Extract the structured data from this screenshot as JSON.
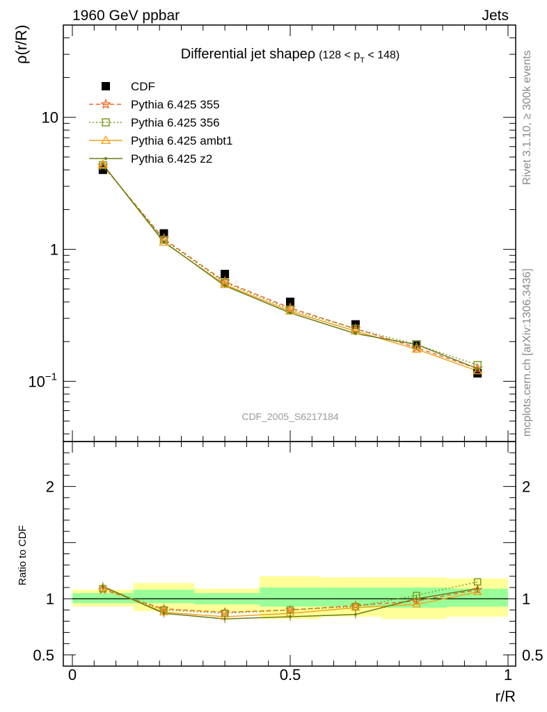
{
  "header": {
    "left": "1960 GeV ppbar",
    "right": "Jets"
  },
  "side_labels": {
    "top": "Rivet 3.1.10, ≥ 300k events",
    "bottom": "mcplots.cern.ch [arXiv:1306.3436]"
  },
  "chart_data": {
    "type": "line",
    "title_main": "Differential jet shapeρ",
    "title_sub": "(128 < p",
    "title_sub_index": "T",
    "title_sub_end": " < 148)",
    "ylabel": "ρ(r/R)",
    "ratio_ylabel": "Ratio to CDF",
    "xlabel": "r/R",
    "watermark": "CDF_2005_S6217184",
    "xlim": [
      0,
      1
    ],
    "ylim": [
      0.035,
      50
    ],
    "yscale": "log",
    "ratio_ylim": [
      0.4,
      2.4
    ],
    "x": [
      0.07,
      0.21,
      0.35,
      0.5,
      0.65,
      0.79,
      0.93
    ],
    "ratio_band_edges": [
      0,
      0.14,
      0.28,
      0.43,
      0.57,
      0.71,
      0.86,
      1.0
    ],
    "ratio_band_green": [
      [
        0.96,
        1.05
      ],
      [
        0.96,
        1.08
      ],
      [
        0.95,
        1.05
      ],
      [
        0.93,
        1.1
      ],
      [
        0.93,
        1.1
      ],
      [
        0.92,
        1.1
      ],
      [
        0.93,
        1.09
      ]
    ],
    "ratio_band_yellow": [
      [
        0.93,
        1.08
      ],
      [
        0.89,
        1.14
      ],
      [
        0.88,
        1.09
      ],
      [
        0.82,
        1.2
      ],
      [
        0.84,
        1.19
      ],
      [
        0.82,
        1.19
      ],
      [
        0.84,
        1.18
      ]
    ],
    "grid": false,
    "legend_position": "top-left",
    "x_ticks": [
      {
        "v": 0,
        "label": "0"
      },
      {
        "v": 0.5,
        "label": "0.5"
      },
      {
        "v": 1,
        "label": "1"
      }
    ],
    "y_ticks": [
      {
        "v": 0.1,
        "base": "10",
        "exp": "−1"
      },
      {
        "v": 1,
        "base": "1",
        "exp": ""
      },
      {
        "v": 10,
        "base": "10",
        "exp": ""
      }
    ],
    "ratio_ticks": [
      {
        "v": 0.5,
        "label": "0.5"
      },
      {
        "v": 1,
        "label": "1"
      },
      {
        "v": 2,
        "label": "2"
      }
    ],
    "series": [
      {
        "name": "CDF",
        "marker": "square",
        "color": "#000000",
        "dash": "",
        "values": [
          4.0,
          1.32,
          0.65,
          0.4,
          0.27,
          0.19,
          0.115
        ]
      },
      {
        "name": "Pythia 6.425 355",
        "marker": "star",
        "color": "#f26522",
        "dash": "6,4",
        "values": [
          4.3,
          1.2,
          0.57,
          0.36,
          0.25,
          0.18,
          0.125
        ],
        "ratio": [
          1.08,
          0.91,
          0.88,
          0.9,
          0.94,
          0.98,
          1.08
        ]
      },
      {
        "name": "Pythia 6.425 356",
        "marker": "open-square",
        "color": "#7a9a1a",
        "dash": "2,3",
        "values": [
          4.35,
          1.18,
          0.56,
          0.35,
          0.25,
          0.19,
          0.133
        ],
        "ratio": [
          1.09,
          0.9,
          0.87,
          0.9,
          0.93,
          1.03,
          1.15
        ]
      },
      {
        "name": "Pythia 6.425 ambt1",
        "marker": "triangle",
        "color": "#f2a11a",
        "dash": "",
        "values": [
          4.4,
          1.13,
          0.54,
          0.34,
          0.24,
          0.175,
          0.12
        ],
        "ratio": [
          1.1,
          0.88,
          0.84,
          0.87,
          0.92,
          0.95,
          1.06
        ]
      },
      {
        "name": "Pythia 6.425 z2",
        "marker": "dot",
        "color": "#6b7a12",
        "dash": "",
        "values": [
          4.4,
          1.14,
          0.53,
          0.33,
          0.23,
          0.19,
          0.125
        ],
        "ratio": [
          1.11,
          0.87,
          0.82,
          0.84,
          0.86,
          1.0,
          1.09
        ]
      }
    ]
  }
}
